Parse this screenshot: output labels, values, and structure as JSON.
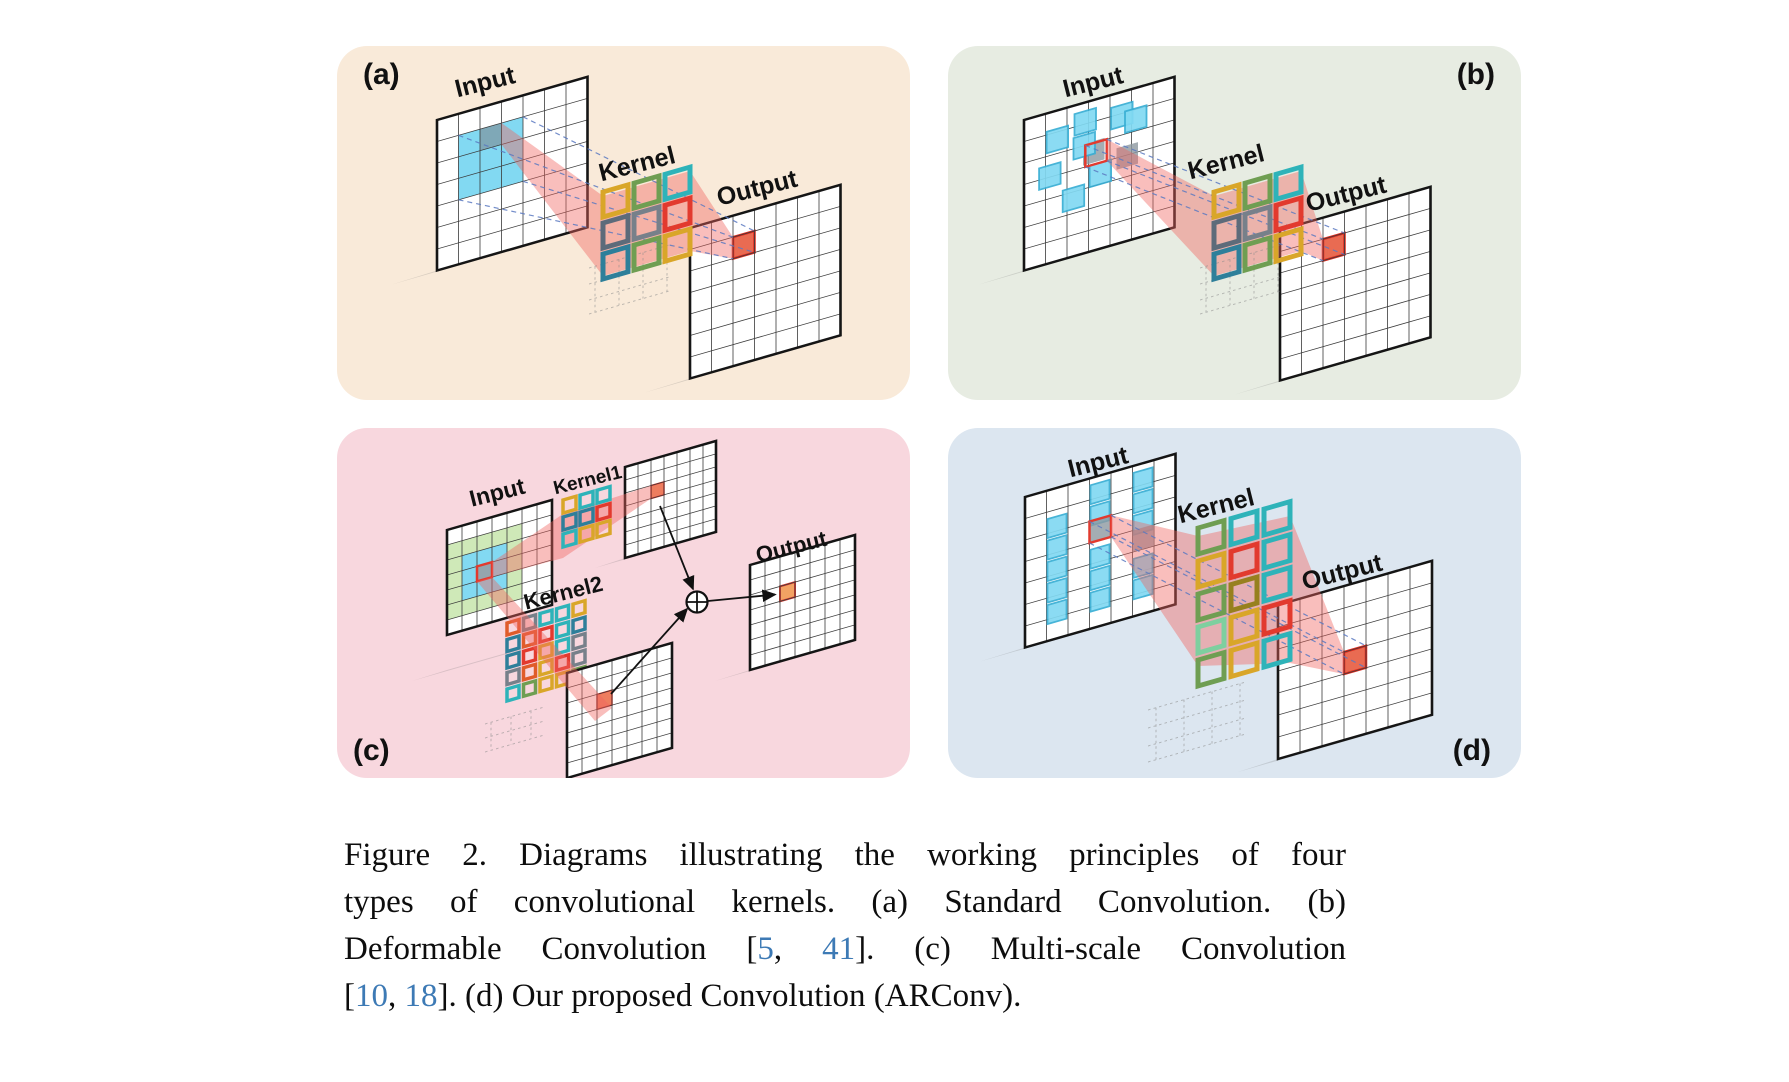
{
  "palette": {
    "gold": "#d9a629",
    "green": "#6f9e52",
    "teal": "#2eb3b9",
    "blue": "#2e7f9a",
    "slate": "#5d6b7a",
    "gray": "#77808a",
    "red": "#e23a2e",
    "orange": "#e05c2a",
    "olive": "#97801f",
    "mint": "#7ecf9f",
    "cyan_fill": "#82d9f2",
    "cyan_edge": "#38aed4",
    "gray_cell": "#8d99a0",
    "green_region": "#cfe9b8",
    "beam_red": "#f0655f",
    "dashed_line_blue": "#5b79c1",
    "panel_a_bg": "#f9ead9",
    "panel_b_bg": "#e7ece2",
    "panel_c_bg": "#f8d7de",
    "panel_d_bg": "#dce6f0",
    "cite_blue": "#3d7ab5"
  },
  "figure": {
    "panels": {
      "a": {
        "letter": "(a)",
        "input": "Input",
        "kernel": "Kernel",
        "output": "Output",
        "kernel_colors": [
          [
            "gold",
            "green",
            "teal"
          ],
          [
            "slate",
            "gray",
            "red"
          ],
          [
            "blue",
            "green",
            "gold"
          ]
        ]
      },
      "b": {
        "letter": "(b)",
        "input": "Input",
        "kernel": "Kernel",
        "output": "Output",
        "kernel_colors": [
          [
            "gold",
            "green",
            "teal"
          ],
          [
            "slate",
            "gray",
            "red"
          ],
          [
            "blue",
            "green",
            "gold"
          ]
        ]
      },
      "c": {
        "letter": "(c)",
        "input": "Input",
        "kernel1": "Kernel1",
        "kernel2": "Kernel2",
        "output": "Output",
        "kernel1_colors": [
          [
            "gold",
            "teal",
            "teal"
          ],
          [
            "blue",
            "blue",
            "red"
          ],
          [
            "teal",
            "gold",
            "gold"
          ]
        ],
        "kernel2_colors": [
          [
            "orange",
            "gray",
            "teal",
            "teal",
            "gold"
          ],
          [
            "blue",
            "orange",
            "red",
            "teal",
            "blue"
          ],
          [
            "blue",
            "red",
            "gold",
            "teal",
            "gray"
          ],
          [
            "gray",
            "orange",
            "gold",
            "red",
            "gray"
          ],
          [
            "teal",
            "green",
            "gold",
            "gold",
            "green"
          ]
        ]
      },
      "d": {
        "letter": "(d)",
        "input": "Input",
        "kernel": "Kernel",
        "output": "Output",
        "kernel_colors": [
          [
            "green",
            "teal",
            "teal"
          ],
          [
            "gold",
            "red",
            "teal"
          ],
          [
            "green",
            "olive",
            "teal"
          ],
          [
            "mint",
            "gold",
            "red"
          ],
          [
            "green",
            "gold",
            "teal"
          ]
        ]
      }
    },
    "caption": {
      "line1": "Figure 2.  Diagrams illustrating the working principles of four",
      "line2": "types of convolutional kernels.  (a) Standard Convolution.  (b)",
      "line3_pre": "Deformable Convolution [",
      "cite_5": "5",
      "sep": ", ",
      "cite_41": "41",
      "line3_post": "].  (c) Multi-scale Convolution",
      "line4_pre": "[",
      "cite_10": "10",
      "sep2": ", ",
      "cite_18": "18",
      "line4_post": "]. (d) Our proposed Convolution (ARConv)."
    }
  }
}
